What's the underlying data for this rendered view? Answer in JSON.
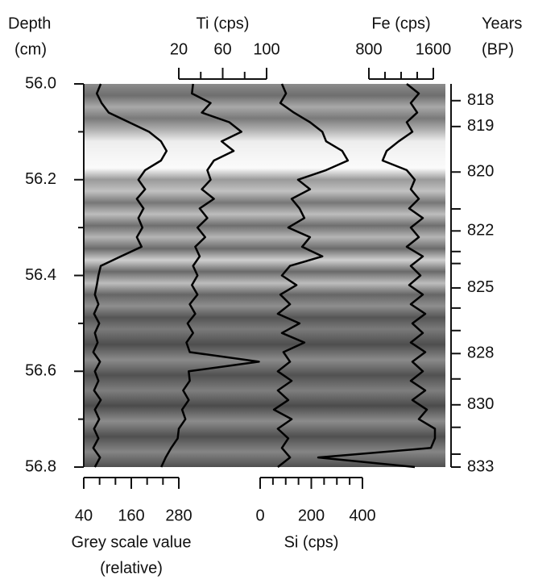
{
  "chart_data": {
    "type": "line",
    "y_title": [
      "Depth",
      "(cm)"
    ],
    "y2_title": [
      "Years",
      "(BP)"
    ],
    "ylim": [
      56.0,
      56.8
    ],
    "yticks": [
      {
        "value": 56.0,
        "label": "56.0"
      },
      56.2,
      56.4,
      56.6,
      56.8
    ],
    "y_minor_ticks": [
      56.1,
      56.3,
      56.5,
      56.7
    ],
    "y2ticks": [
      {
        "value": 56.035,
        "label": "818"
      },
      {
        "value": 56.089,
        "label": "819"
      },
      {
        "value": 56.184,
        "label": "820"
      },
      {
        "value": 56.307,
        "label": "822"
      },
      {
        "value": 56.426,
        "label": "825"
      },
      {
        "value": 56.563,
        "label": "828"
      },
      {
        "value": 56.67,
        "label": "830"
      },
      {
        "value": 56.8,
        "label": "833"
      }
    ],
    "y2_minor_ticks": [
      56.261,
      56.35,
      56.375,
      56.468,
      56.515,
      56.616,
      56.717,
      56.773
    ],
    "depth": [
      56.0,
      56.02,
      56.04,
      56.06,
      56.08,
      56.1,
      56.12,
      56.14,
      56.16,
      56.18,
      56.2,
      56.22,
      56.24,
      56.26,
      56.28,
      56.3,
      56.32,
      56.34,
      56.36,
      56.38,
      56.4,
      56.42,
      56.44,
      56.46,
      56.48,
      56.5,
      56.52,
      56.54,
      56.56,
      56.58,
      56.6,
      56.62,
      56.64,
      56.66,
      56.68,
      56.7,
      56.72,
      56.74,
      56.76,
      56.78,
      56.8
    ],
    "series": [
      {
        "name": "Grey scale value",
        "subtitle": "(relative)",
        "axis_side": "bottom",
        "color": "#000000",
        "xlim": [
          40,
          280
        ],
        "xticks": [
          40,
          160,
          280
        ],
        "x_minor_ticks": [
          80,
          120,
          200,
          240
        ],
        "values": [
          83,
          73,
          85,
          103,
          154,
          205,
          235,
          249,
          235,
          195,
          178,
          195,
          174,
          191,
          178,
          188,
          174,
          186,
          134,
          83,
          77,
          73,
          68,
          77,
          66,
          79,
          68,
          75,
          64,
          81,
          68,
          77,
          66,
          83,
          68,
          79,
          66,
          77,
          64,
          81,
          68
        ]
      },
      {
        "name": "Ti (cps)",
        "axis_side": "top",
        "color": "#000000",
        "xlim": [
          20,
          100
        ],
        "xticks": [
          20,
          60,
          100
        ],
        "x_minor_ticks": [
          40,
          80
        ],
        "values": [
          33,
          32,
          49,
          41,
          66,
          77,
          59,
          70,
          52,
          46,
          49,
          41,
          52,
          39,
          46,
          37,
          44,
          35,
          39,
          33,
          37,
          32,
          37,
          30,
          35,
          28,
          33,
          27,
          30,
          93,
          29,
          30,
          24,
          29,
          23,
          26,
          20,
          19,
          13,
          8,
          4
        ]
      },
      {
        "name": "Si (cps)",
        "axis_side": "bottom",
        "color": "#000000",
        "xlim": [
          0,
          400
        ],
        "xticks": [
          0,
          200,
          400
        ],
        "x_minor_ticks": [
          50,
          100,
          150,
          250,
          300,
          350
        ],
        "values": [
          85,
          101,
          79,
          132,
          195,
          243,
          258,
          321,
          343,
          258,
          148,
          195,
          123,
          154,
          173,
          110,
          195,
          164,
          243,
          117,
          85,
          142,
          79,
          117,
          69,
          154,
          85,
          173,
          91,
          117,
          69,
          123,
          69,
          110,
          54,
          123,
          69,
          110,
          85,
          117,
          69
        ]
      },
      {
        "name": "Fe (cps)",
        "axis_side": "top",
        "color": "#000000",
        "xlim": [
          800,
          1600
        ],
        "xticks": [
          800,
          1600
        ],
        "x_minor_ticks": [
          1000,
          1200,
          1400
        ],
        "values": [
          1270,
          1420,
          1320,
          1400,
          1270,
          1340,
          1170,
          1020,
          970,
          1270,
          1370,
          1320,
          1420,
          1300,
          1470,
          1320,
          1420,
          1270,
          1470,
          1320,
          1440,
          1300,
          1470,
          1320,
          1500,
          1340,
          1470,
          1320,
          1500,
          1340,
          1470,
          1320,
          1500,
          1340,
          1520,
          1420,
          1620,
          1620,
          1570,
          170,
          1370
        ]
      }
    ]
  }
}
